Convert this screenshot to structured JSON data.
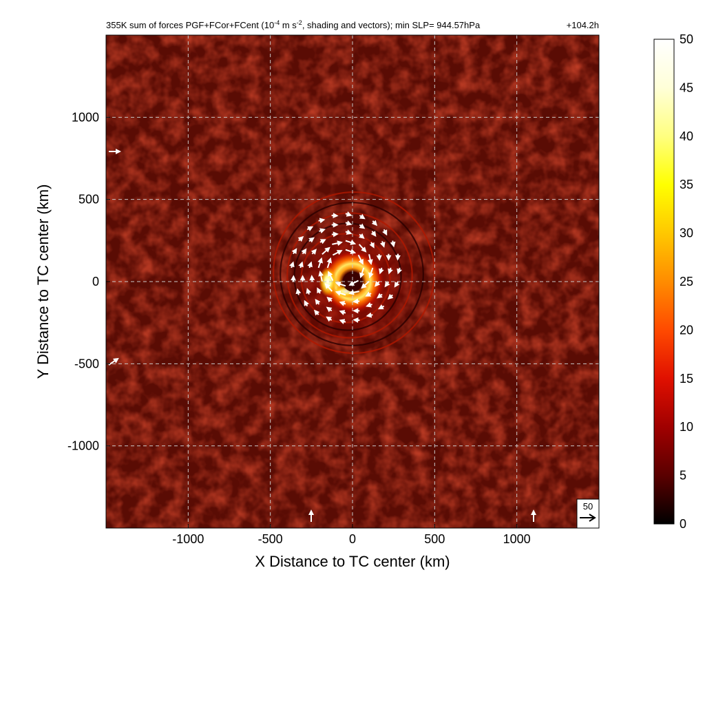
{
  "chart_data": {
    "type": "heatmap",
    "title": "355K sum of forces PGF+FCor+FCent (10",
    "title_sup1": "-4",
    "title_mid": " m s",
    "title_sup2": "-2",
    "title_end": ", shading and vectors); min SLP= 944.57hPa",
    "time_label": "+104.2h",
    "xlabel": "X Distance to TC center (km)",
    "ylabel": "Y Distance to TC center (km)",
    "xlim": [
      -1500,
      1500
    ],
    "ylim": [
      -1500,
      1500
    ],
    "xticks": [
      "-1000",
      "-500",
      "0",
      "500",
      "1000"
    ],
    "yticks": [
      "1000",
      "500",
      "0",
      "-500",
      "-1000"
    ],
    "xtick_values": [
      -1000,
      -500,
      0,
      500,
      1000
    ],
    "ytick_values": [
      1000,
      500,
      0,
      -500,
      -1000
    ],
    "grid": true,
    "colorbar": {
      "min": 0,
      "max": 50,
      "ticks": [
        "0",
        "5",
        "10",
        "15",
        "20",
        "25",
        "30",
        "35",
        "40",
        "45",
        "50"
      ],
      "tick_values": [
        0,
        5,
        10,
        15,
        20,
        25,
        30,
        35,
        40,
        45,
        50
      ],
      "colors": [
        "#000000",
        "#5a0000",
        "#a00000",
        "#e01000",
        "#ff4a00",
        "#ff8c00",
        "#ffc800",
        "#ffff00",
        "#ffff80",
        "#ffffd8",
        "#ffffff"
      ]
    },
    "vector_reference": {
      "label": "50",
      "value": 50
    },
    "storm_center": [
      0,
      0
    ],
    "max_value_region_km": [
      -150,
      0
    ],
    "eye_radius_km": 60,
    "eyewall_radius_km": 200
  }
}
